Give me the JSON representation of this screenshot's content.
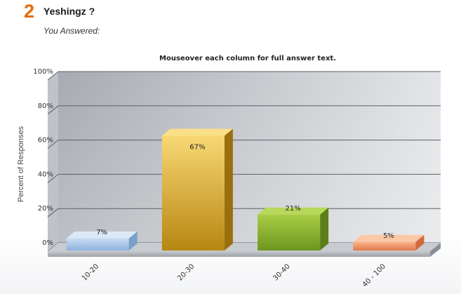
{
  "question": {
    "number": "2",
    "title": "Yeshingz ?",
    "answered_label": "You Answered:"
  },
  "chart_note": "Mouseover each column for full answer text.",
  "colors": {
    "accent_number": "#e36c0a",
    "bar_blue": "#9cc0e6",
    "bar_gold": "#e1b43c",
    "bar_green": "#8ab232",
    "bar_orange": "#f09a6a"
  },
  "chart_data": {
    "type": "bar",
    "categories": [
      "10-20",
      "20-30",
      "30-40",
      "40 - 100"
    ],
    "values": [
      7,
      67,
      21,
      5
    ],
    "value_labels": [
      "7%",
      "67%",
      "21%",
      "5%"
    ],
    "ylabel": "Percent of Responses",
    "ylim": [
      0,
      100
    ],
    "yticks": [
      "0%",
      "20%",
      "40%",
      "60%",
      "80%",
      "100%"
    ],
    "grid": true,
    "style": "3d"
  }
}
